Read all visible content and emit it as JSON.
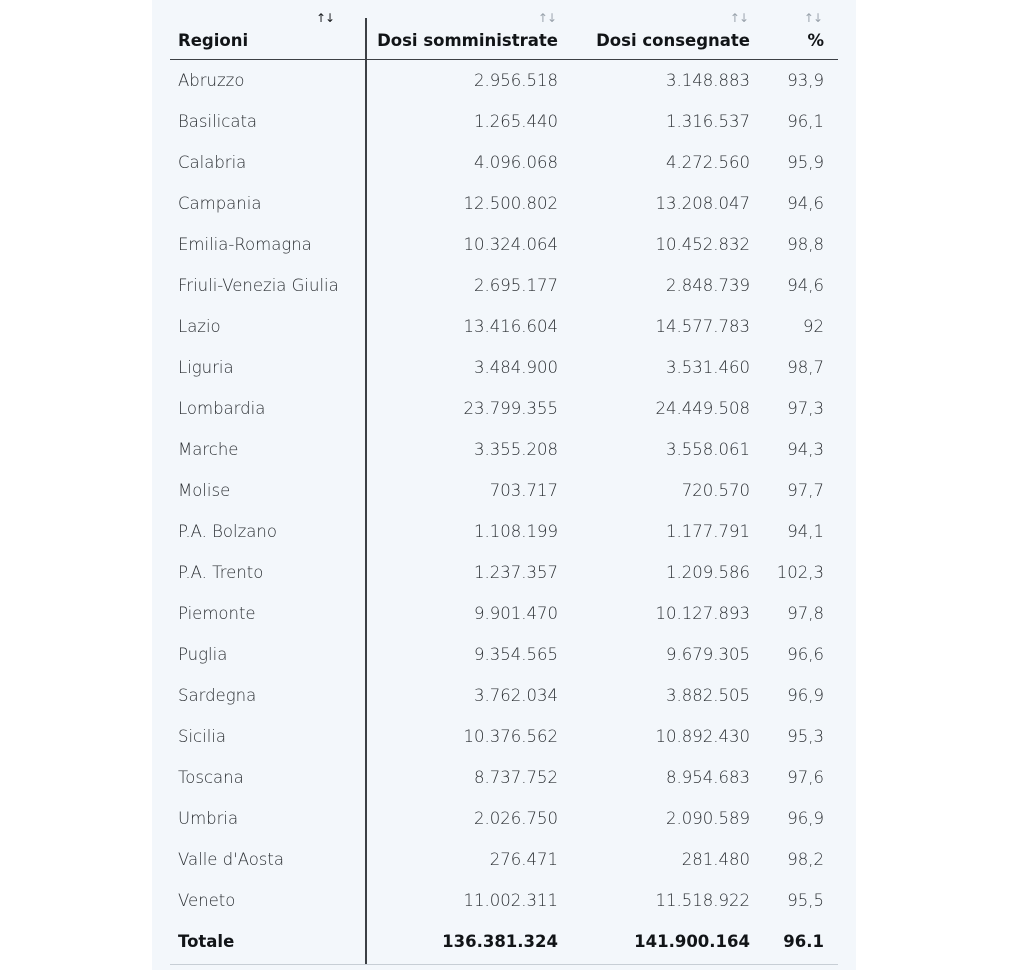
{
  "table": {
    "headers": {
      "region": "Regioni",
      "administered": "Dosi somministrate",
      "delivered": "Dosi consegnate",
      "percent": "%"
    },
    "sort_icon": "↑↓",
    "rows": [
      {
        "region": "Abruzzo",
        "administered": "2.956.518",
        "delivered": "3.148.883",
        "percent": "93,9"
      },
      {
        "region": "Basilicata",
        "administered": "1.265.440",
        "delivered": "1.316.537",
        "percent": "96,1"
      },
      {
        "region": "Calabria",
        "administered": "4.096.068",
        "delivered": "4.272.560",
        "percent": "95,9"
      },
      {
        "region": "Campania",
        "administered": "12.500.802",
        "delivered": "13.208.047",
        "percent": "94,6"
      },
      {
        "region": "Emilia-Romagna",
        "administered": "10.324.064",
        "delivered": "10.452.832",
        "percent": "98,8"
      },
      {
        "region": "Friuli-Venezia Giulia",
        "administered": "2.695.177",
        "delivered": "2.848.739",
        "percent": "94,6"
      },
      {
        "region": "Lazio",
        "administered": "13.416.604",
        "delivered": "14.577.783",
        "percent": "92"
      },
      {
        "region": "Liguria",
        "administered": "3.484.900",
        "delivered": "3.531.460",
        "percent": "98,7"
      },
      {
        "region": "Lombardia",
        "administered": "23.799.355",
        "delivered": "24.449.508",
        "percent": "97,3"
      },
      {
        "region": "Marche",
        "administered": "3.355.208",
        "delivered": "3.558.061",
        "percent": "94,3"
      },
      {
        "region": "Molise",
        "administered": "703.717",
        "delivered": "720.570",
        "percent": "97,7"
      },
      {
        "region": "P.A. Bolzano",
        "administered": "1.108.199",
        "delivered": "1.177.791",
        "percent": "94,1"
      },
      {
        "region": "P.A. Trento",
        "administered": "1.237.357",
        "delivered": "1.209.586",
        "percent": "102,3"
      },
      {
        "region": "Piemonte",
        "administered": "9.901.470",
        "delivered": "10.127.893",
        "percent": "97,8"
      },
      {
        "region": "Puglia",
        "administered": "9.354.565",
        "delivered": "9.679.305",
        "percent": "96,6"
      },
      {
        "region": "Sardegna",
        "administered": "3.762.034",
        "delivered": "3.882.505",
        "percent": "96,9"
      },
      {
        "region": "Sicilia",
        "administered": "10.376.562",
        "delivered": "10.892.430",
        "percent": "95,3"
      },
      {
        "region": "Toscana",
        "administered": "8.737.752",
        "delivered": "8.954.683",
        "percent": "97,6"
      },
      {
        "region": "Umbria",
        "administered": "2.026.750",
        "delivered": "2.090.589",
        "percent": "96,9"
      },
      {
        "region": "Valle d'Aosta",
        "administered": "276.471",
        "delivered": "281.480",
        "percent": "98,2"
      },
      {
        "region": "Veneto",
        "administered": "11.002.311",
        "delivered": "11.518.922",
        "percent": "95,5"
      }
    ],
    "total": {
      "region": "Totale",
      "administered": "136.381.324",
      "delivered": "141.900.164",
      "percent": "96.1"
    }
  },
  "colors": {
    "panel_background": "#f3f7fb",
    "text": "#2b2f33",
    "sort_active": "#1a1d20",
    "sort_inactive": "#9aa3ac",
    "rule": "#3c4045"
  }
}
